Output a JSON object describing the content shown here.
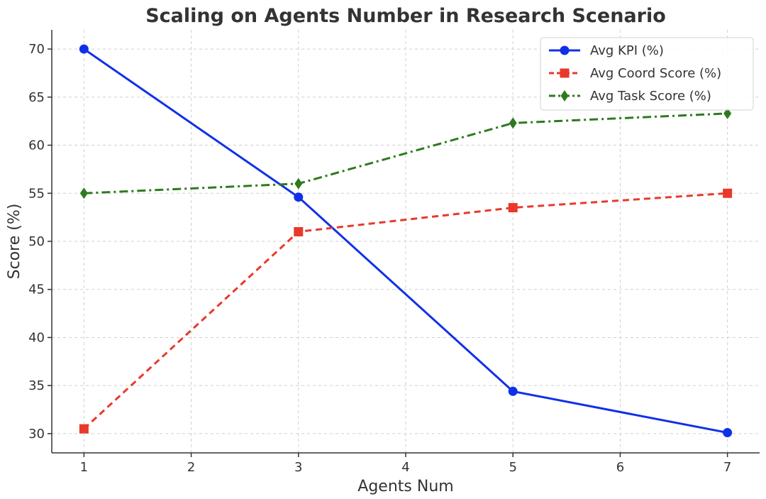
{
  "chart_data": {
    "type": "line",
    "title": "Scaling on Agents Number in Research Scenario",
    "xlabel": "Agents Num",
    "ylabel": "Score (%)",
    "x": [
      1,
      3,
      5,
      7
    ],
    "xlim": [
      0.7,
      7.3
    ],
    "ylim": [
      28,
      72
    ],
    "xticks": [
      "1",
      "2",
      "3",
      "4",
      "5",
      "6",
      "7"
    ],
    "yticks": [
      "30",
      "35",
      "40",
      "45",
      "50",
      "55",
      "60",
      "65",
      "70"
    ],
    "grid": true,
    "legend_position": "top-right",
    "series": [
      {
        "name": "Avg KPI (%)",
        "values": [
          70.0,
          54.6,
          34.4,
          30.1
        ],
        "color": "#1030e8",
        "line_style": "solid",
        "marker": "circle"
      },
      {
        "name": "Avg Coord Score (%)",
        "values": [
          30.5,
          51.0,
          53.5,
          55.0
        ],
        "color": "#e8392b",
        "line_style": "dashed",
        "marker": "square"
      },
      {
        "name": "Avg Task Score (%)",
        "values": [
          55.0,
          56.0,
          62.3,
          63.3
        ],
        "color": "#2e7a1f",
        "line_style": "dashdot",
        "marker": "diamond"
      }
    ]
  }
}
